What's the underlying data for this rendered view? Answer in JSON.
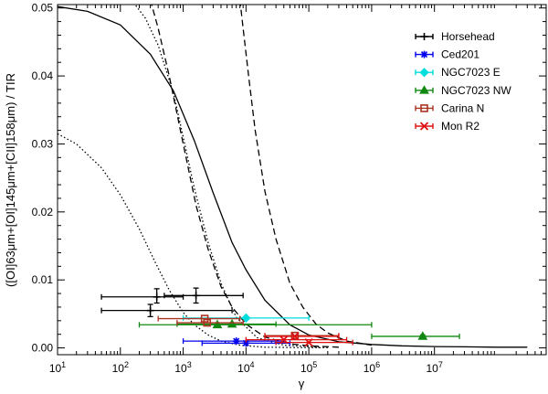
{
  "chart_data": {
    "type": "scatter",
    "title": "",
    "xlabel": "γ",
    "ylabel": "([OI]63μm+[OI]145μm+[CII]158μm) / TIR",
    "xscale": "log",
    "xlim": [
      10,
      600000000
    ],
    "ylim": [
      -0.001,
      0.0505
    ],
    "x_ticks": [
      {
        "value": 10,
        "base": "10",
        "exp": "1"
      },
      {
        "value": 100,
        "base": "10",
        "exp": "2"
      },
      {
        "value": 1000,
        "base": "10",
        "exp": "3"
      },
      {
        "value": 10000,
        "base": "10",
        "exp": "4"
      },
      {
        "value": 100000,
        "base": "10",
        "exp": "5"
      },
      {
        "value": 1000000,
        "base": "10",
        "exp": "6"
      },
      {
        "value": 10000000,
        "base": "10",
        "exp": "7"
      }
    ],
    "y_ticks": [
      {
        "value": 0.0,
        "label": "0.00"
      },
      {
        "value": 0.01,
        "label": "0.01"
      },
      {
        "value": 0.02,
        "label": "0.02"
      },
      {
        "value": 0.03,
        "label": "0.03"
      },
      {
        "value": 0.04,
        "label": "0.04"
      },
      {
        "value": 0.05,
        "label": "0.05"
      }
    ],
    "legend_position": "top-right",
    "curves": [
      {
        "name": "model solid",
        "style": "solid",
        "x": [
          10,
          30,
          100,
          300,
          700,
          1500,
          3000,
          6000,
          10000,
          20000,
          50000,
          100000,
          300000,
          1000000,
          3000000,
          10000000,
          30000000,
          100000000,
          300000000
        ],
        "y": [
          0.0502,
          0.0495,
          0.0475,
          0.0432,
          0.0378,
          0.0305,
          0.0228,
          0.0155,
          0.0115,
          0.007,
          0.0034,
          0.0019,
          0.0009,
          0.0005,
          0.0003,
          0.0002,
          0.00015,
          0.0001,
          0.0001
        ]
      },
      {
        "name": "model dashed 1",
        "style": "dashed",
        "x": [
          300,
          400,
          600,
          1000,
          1600,
          2500,
          4000,
          6000,
          10000,
          20000,
          50000,
          100000,
          300000
        ],
        "y": [
          0.0512,
          0.047,
          0.04,
          0.03,
          0.021,
          0.0145,
          0.009,
          0.006,
          0.0035,
          0.0016,
          0.0006,
          0.0003,
          0.0001
        ]
      },
      {
        "name": "model dashed 2",
        "style": "dashed",
        "x": [
          8000,
          9000,
          11000,
          14000,
          20000,
          30000,
          50000,
          80000,
          130000,
          200000,
          400000,
          1000000
        ],
        "y": [
          0.0512,
          0.047,
          0.04,
          0.032,
          0.023,
          0.016,
          0.0095,
          0.006,
          0.0035,
          0.0022,
          0.001,
          0.0004
        ]
      },
      {
        "name": "model dotted 1",
        "style": "dotted",
        "x": [
          10,
          20,
          50,
          100,
          200,
          350,
          600,
          1000,
          1500,
          2500,
          4000,
          8000,
          20000,
          60000,
          200000
        ],
        "y": [
          0.0315,
          0.03,
          0.0265,
          0.0225,
          0.0175,
          0.0128,
          0.0085,
          0.0052,
          0.0034,
          0.0019,
          0.001,
          0.0004,
          0.0001,
          5e-05,
          2e-05
        ]
      },
      {
        "name": "model dotted 2",
        "style": "dotted",
        "x": [
          150,
          250,
          400,
          700,
          1000,
          1500,
          2500,
          4000,
          7000,
          15000,
          40000,
          150000
        ],
        "y": [
          0.0512,
          0.0485,
          0.0445,
          0.0375,
          0.031,
          0.0235,
          0.0155,
          0.0095,
          0.0045,
          0.0015,
          0.0004,
          0.0001
        ]
      }
    ],
    "series": [
      {
        "name": "Horsehead",
        "color": "#000000",
        "marker": "plus",
        "points": [
          {
            "x": 380,
            "xerr": [
              50,
              1000
            ],
            "y": 0.0075,
            "yerr": [
              0.0066,
              0.0087
            ]
          },
          {
            "x": 1600,
            "xerr": [
              500,
              9000
            ],
            "y": 0.0077,
            "yerr": [
              0.0066,
              0.0088
            ]
          },
          {
            "x": 300,
            "xerr": [
              50,
              6000
            ],
            "y": 0.0055,
            "yerr": [
              0.0046,
              0.0064
            ]
          }
        ]
      },
      {
        "name": "Ced201",
        "color": "#0000ee",
        "marker": "asterisk",
        "points": [
          {
            "x": 7000,
            "xerr": [
              1000,
              40000
            ],
            "y": 0.001,
            "yerr": [
              0.001,
              0.001
            ]
          },
          {
            "x": 10000,
            "xerr": [
              2000,
              50000
            ],
            "y": 0.0007,
            "yerr": [
              0.0007,
              0.0007
            ]
          }
        ]
      },
      {
        "name": "NGC7023 E",
        "color": "#00dddd",
        "marker": "diamond",
        "points": [
          {
            "x": 10000,
            "xerr": [
              1000,
              100000
            ],
            "y": 0.0044,
            "yerr": [
              0.0044,
              0.0044
            ]
          }
        ]
      },
      {
        "name": "NGC7023 NW",
        "color": "#118811",
        "marker": "triangle",
        "points": [
          {
            "x": 3500,
            "xerr": [
              200,
              1000000
            ],
            "y": 0.0034,
            "yerr": [
              0.0034,
              0.0034
            ]
          },
          {
            "x": 6000,
            "xerr": [
              800,
              30000
            ],
            "y": 0.0035,
            "yerr": [
              0.0035,
              0.0035
            ]
          },
          {
            "x": 6500000,
            "xerr": [
              1000000,
              25000000
            ],
            "y": 0.0017,
            "yerr": [
              0.0015,
              0.0019
            ]
          }
        ]
      },
      {
        "name": "Carina N",
        "color": "#aa3322",
        "marker": "square",
        "points": [
          {
            "x": 2200,
            "xerr": [
              400,
              8000
            ],
            "y": 0.0043,
            "yerr": [
              0.0043,
              0.0043
            ]
          },
          {
            "x": 2400,
            "xerr": [
              800,
              9000
            ],
            "y": 0.0037,
            "yerr": [
              0.0037,
              0.0037
            ]
          },
          {
            "x": 60000,
            "xerr": [
              20000,
              300000
            ],
            "y": 0.0018,
            "yerr": [
              0.0018,
              0.0018
            ]
          }
        ]
      },
      {
        "name": "Mon R2",
        "color": "#dd1111",
        "marker": "cross",
        "points": [
          {
            "x": 60000,
            "xerr": [
              20000,
              300000
            ],
            "y": 0.0017,
            "yerr": [
              0.0017,
              0.0017
            ]
          },
          {
            "x": 40000,
            "xerr": [
              10000,
              400000
            ],
            "y": 0.0012,
            "yerr": [
              0.0012,
              0.0012
            ]
          },
          {
            "x": 100000,
            "xerr": [
              30000,
              500000
            ],
            "y": 0.0008,
            "yerr": [
              0.0008,
              0.0008
            ]
          }
        ]
      }
    ]
  }
}
